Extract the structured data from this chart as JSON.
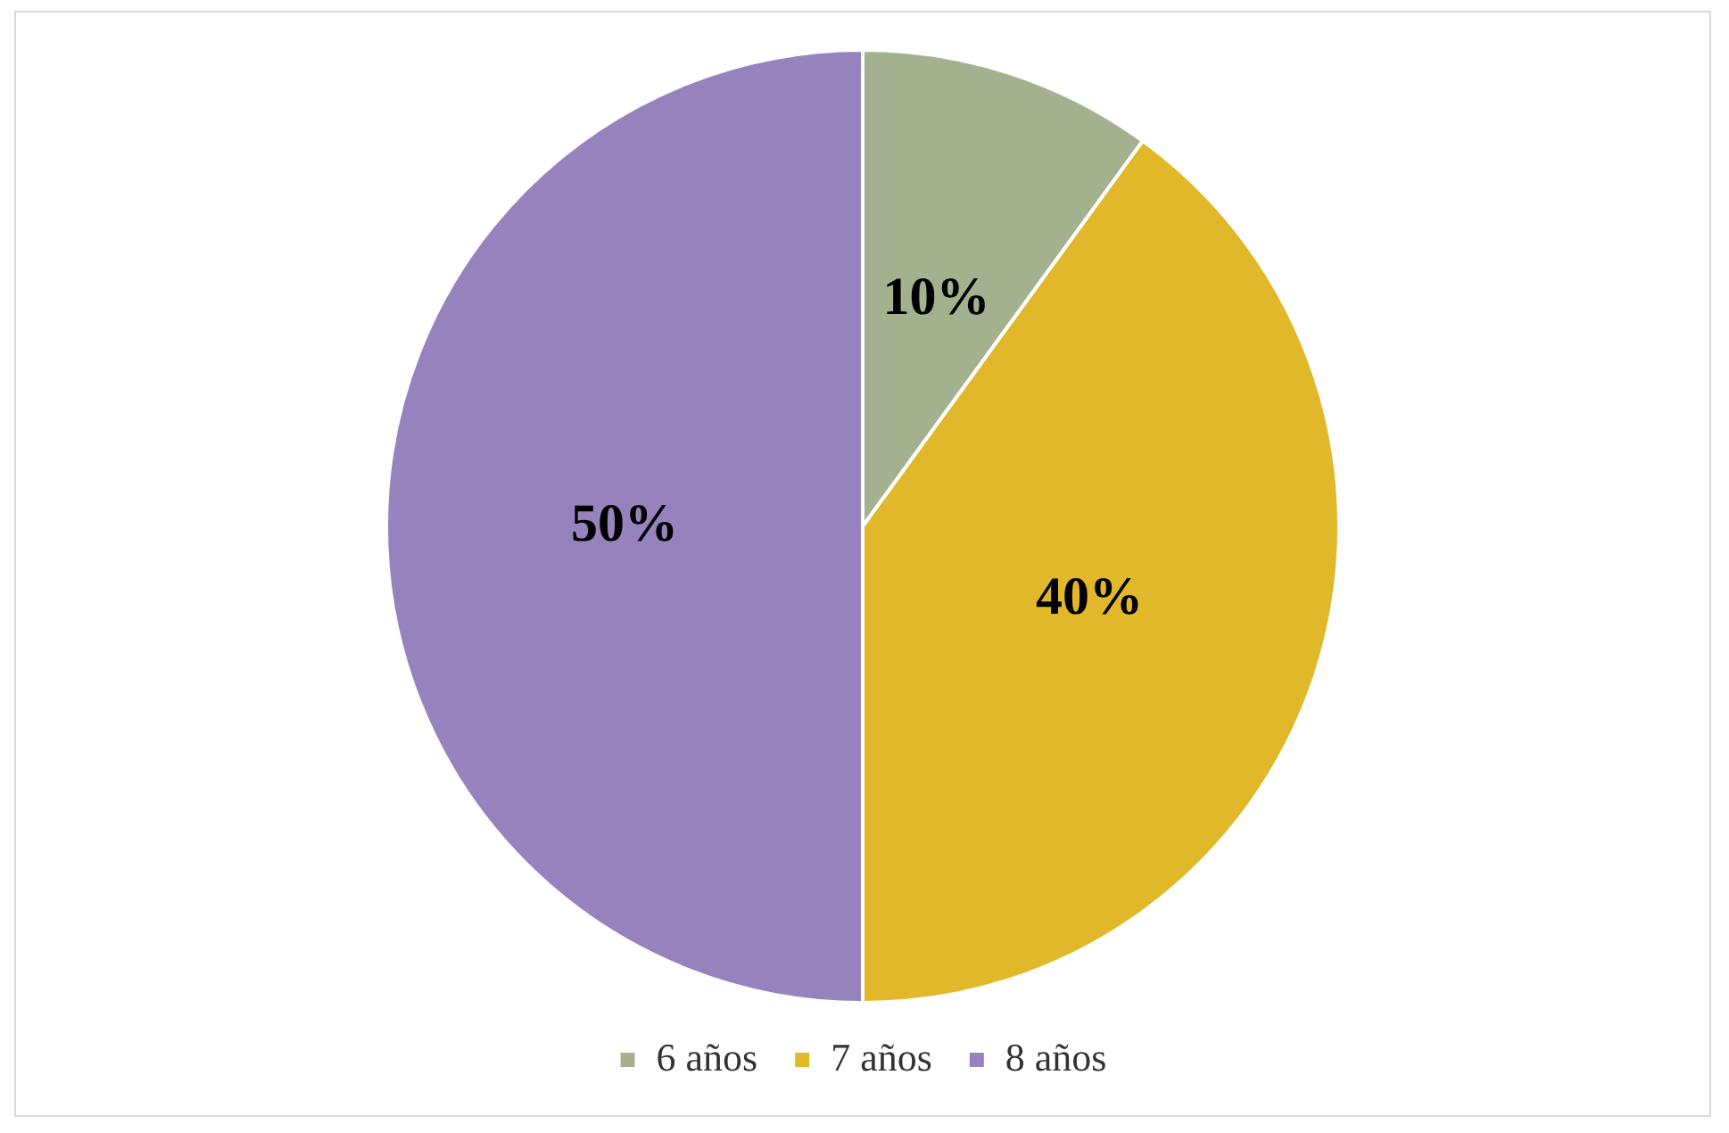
{
  "chart_data": {
    "type": "pie",
    "categories": [
      "6 años",
      "7 años",
      "8 años"
    ],
    "values": [
      10,
      40,
      50
    ],
    "colors": [
      "#a3b18f",
      "#e0b82a",
      "#9683bd"
    ],
    "value_labels": [
      "10%",
      "40%",
      "50%"
    ],
    "legend": "bottom"
  }
}
